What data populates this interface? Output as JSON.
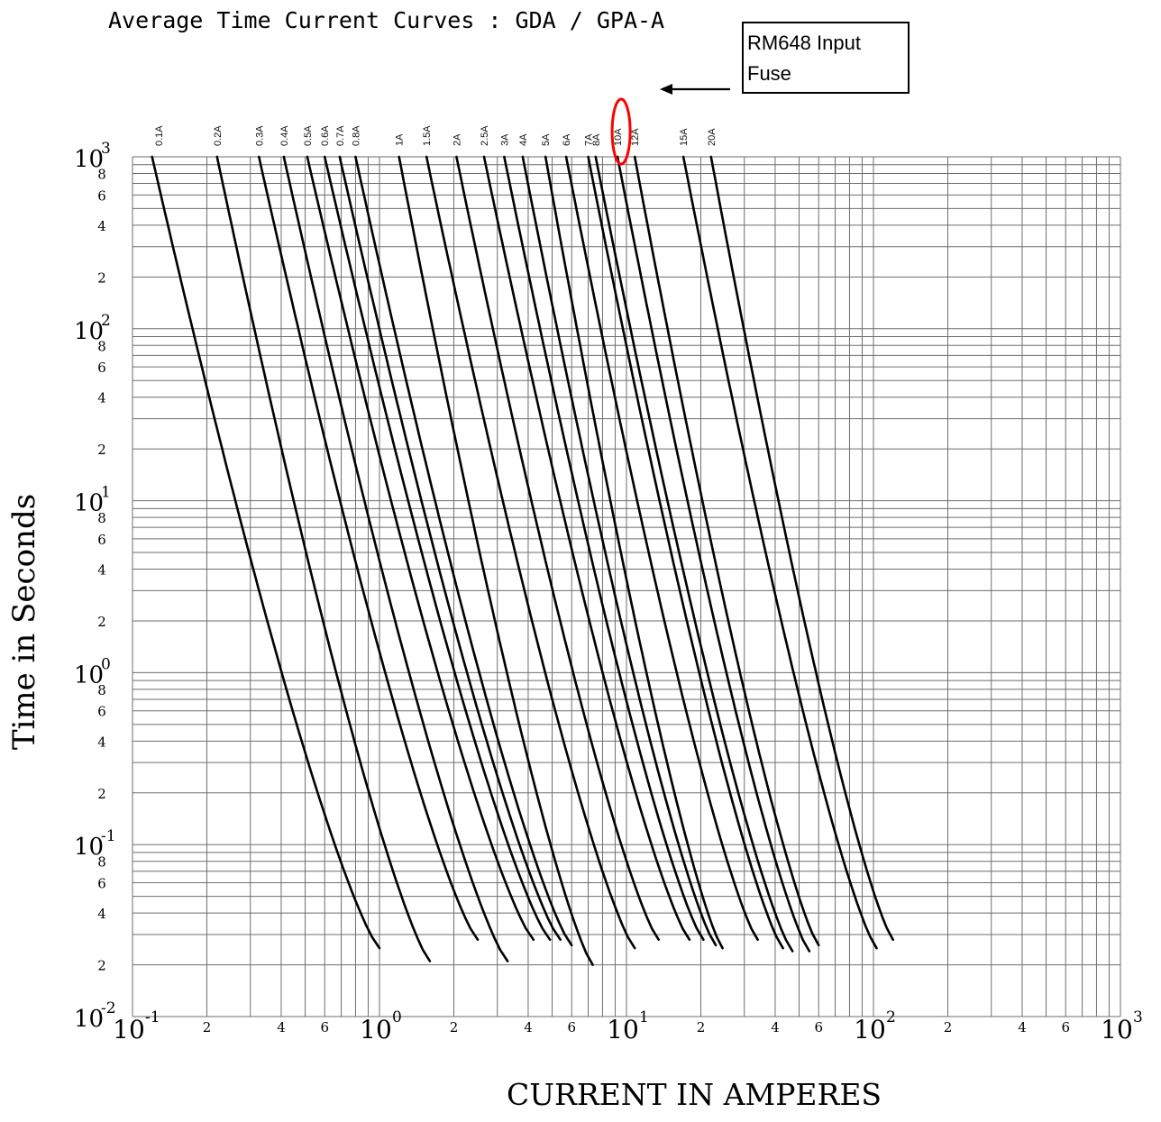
{
  "chart_data": {
    "type": "line",
    "title": "Average Time Current Curves : GDA / GPA-A",
    "xlabel": "CURRENT IN AMPERES",
    "ylabel": "Time in Seconds",
    "xscale": "log",
    "yscale": "log",
    "xlim": [
      0.1,
      1000
    ],
    "ylim": [
      0.01,
      1000
    ],
    "grid": true,
    "x_ticks": [
      {
        "value": 0.1,
        "base": "10",
        "exp": "-1"
      },
      {
        "value": 0.2,
        "label": "2"
      },
      {
        "value": 0.4,
        "label": "4"
      },
      {
        "value": 0.6,
        "label": "6"
      },
      {
        "value": 1,
        "base": "10",
        "exp": "0"
      },
      {
        "value": 2,
        "label": "2"
      },
      {
        "value": 4,
        "label": "4"
      },
      {
        "value": 6,
        "label": "6"
      },
      {
        "value": 10,
        "base": "10",
        "exp": "1"
      },
      {
        "value": 20,
        "label": "2"
      },
      {
        "value": 40,
        "label": "4"
      },
      {
        "value": 60,
        "label": "6"
      },
      {
        "value": 100,
        "base": "10",
        "exp": "2"
      },
      {
        "value": 200,
        "label": "2"
      },
      {
        "value": 400,
        "label": "4"
      },
      {
        "value": 600,
        "label": "6"
      },
      {
        "value": 1000,
        "base": "10",
        "exp": "3"
      }
    ],
    "y_ticks": [
      {
        "value": 1000,
        "base": "10",
        "exp": "3"
      },
      {
        "value": 800,
        "label": "8"
      },
      {
        "value": 600,
        "label": "6"
      },
      {
        "value": 400,
        "label": "4"
      },
      {
        "value": 200,
        "label": "2"
      },
      {
        "value": 100,
        "base": "10",
        "exp": "2"
      },
      {
        "value": 80,
        "label": "8"
      },
      {
        "value": 60,
        "label": "6"
      },
      {
        "value": 40,
        "label": "4"
      },
      {
        "value": 20,
        "label": "2"
      },
      {
        "value": 10,
        "base": "10",
        "exp": "1"
      },
      {
        "value": 8,
        "label": "8"
      },
      {
        "value": 6,
        "label": "6"
      },
      {
        "value": 4,
        "label": "4"
      },
      {
        "value": 2,
        "label": "2"
      },
      {
        "value": 1,
        "base": "10",
        "exp": "0"
      },
      {
        "value": 0.8,
        "label": "8"
      },
      {
        "value": 0.6,
        "label": "6"
      },
      {
        "value": 0.4,
        "label": "4"
      },
      {
        "value": 0.2,
        "label": "2"
      },
      {
        "value": 0.1,
        "base": "10",
        "exp": "-1"
      },
      {
        "value": 0.08,
        "label": "8"
      },
      {
        "value": 0.06,
        "label": "6"
      },
      {
        "value": 0.04,
        "label": "4"
      },
      {
        "value": 0.02,
        "label": "2"
      },
      {
        "value": 0.01,
        "base": "10",
        "exp": "-2"
      }
    ],
    "series": [
      {
        "name": "0.1A",
        "i1000": 0.12,
        "x_end": 1.0,
        "y_end": 0.025
      },
      {
        "name": "0.2A",
        "i1000": 0.22,
        "x_end": 1.6,
        "y_end": 0.021
      },
      {
        "name": "0.3A",
        "i1000": 0.325,
        "x_end": 2.5,
        "y_end": 0.028
      },
      {
        "name": "0.4A",
        "i1000": 0.41,
        "x_end": 3.3,
        "y_end": 0.021
      },
      {
        "name": "0.5A",
        "i1000": 0.51,
        "x_end": 4.2,
        "y_end": 0.028
      },
      {
        "name": "0.6A",
        "i1000": 0.6,
        "x_end": 4.9,
        "y_end": 0.028
      },
      {
        "name": "0.7A",
        "i1000": 0.69,
        "x_end": 5.4,
        "y_end": 0.028
      },
      {
        "name": "0.8A",
        "i1000": 0.8,
        "x_end": 6.0,
        "y_end": 0.026
      },
      {
        "name": "1A",
        "i1000": 1.2,
        "x_end": 7.3,
        "y_end": 0.02
      },
      {
        "name": "1.5A",
        "i1000": 1.55,
        "x_end": 10.8,
        "y_end": 0.025
      },
      {
        "name": "2A",
        "i1000": 2.05,
        "x_end": 13.5,
        "y_end": 0.028
      },
      {
        "name": "2.5A",
        "i1000": 2.65,
        "x_end": 18.0,
        "y_end": 0.028
      },
      {
        "name": "3A",
        "i1000": 3.2,
        "x_end": 20.5,
        "y_end": 0.028
      },
      {
        "name": "4A",
        "i1000": 3.8,
        "x_end": 23.0,
        "y_end": 0.026
      },
      {
        "name": "5A",
        "i1000": 4.7,
        "x_end": 24.5,
        "y_end": 0.025
      },
      {
        "name": "6A",
        "i1000": 5.7,
        "x_end": 34.0,
        "y_end": 0.028
      },
      {
        "name": "7A",
        "i1000": 7.0,
        "x_end": 43.0,
        "y_end": 0.025
      },
      {
        "name": "8A",
        "i1000": 7.5,
        "x_end": 47.0,
        "y_end": 0.024
      },
      {
        "name": "10A",
        "i1000": 9.2,
        "x_end": 55.0,
        "y_end": 0.024
      },
      {
        "name": "12A",
        "i1000": 10.8,
        "x_end": 60.0,
        "y_end": 0.026
      },
      {
        "name": "15A",
        "i1000": 17.0,
        "x_end": 103.0,
        "y_end": 0.025
      },
      {
        "name": "20A",
        "i1000": 22.0,
        "x_end": 120.0,
        "y_end": 0.028
      }
    ],
    "annotation": {
      "text_lines": [
        "RM648 Input",
        "Fuse"
      ],
      "target_series": "10A",
      "highlight_color": "#ff0000"
    },
    "colors": {
      "curve": "#000000",
      "grid": "#6e6e6e",
      "highlight": "#ff0000"
    }
  }
}
